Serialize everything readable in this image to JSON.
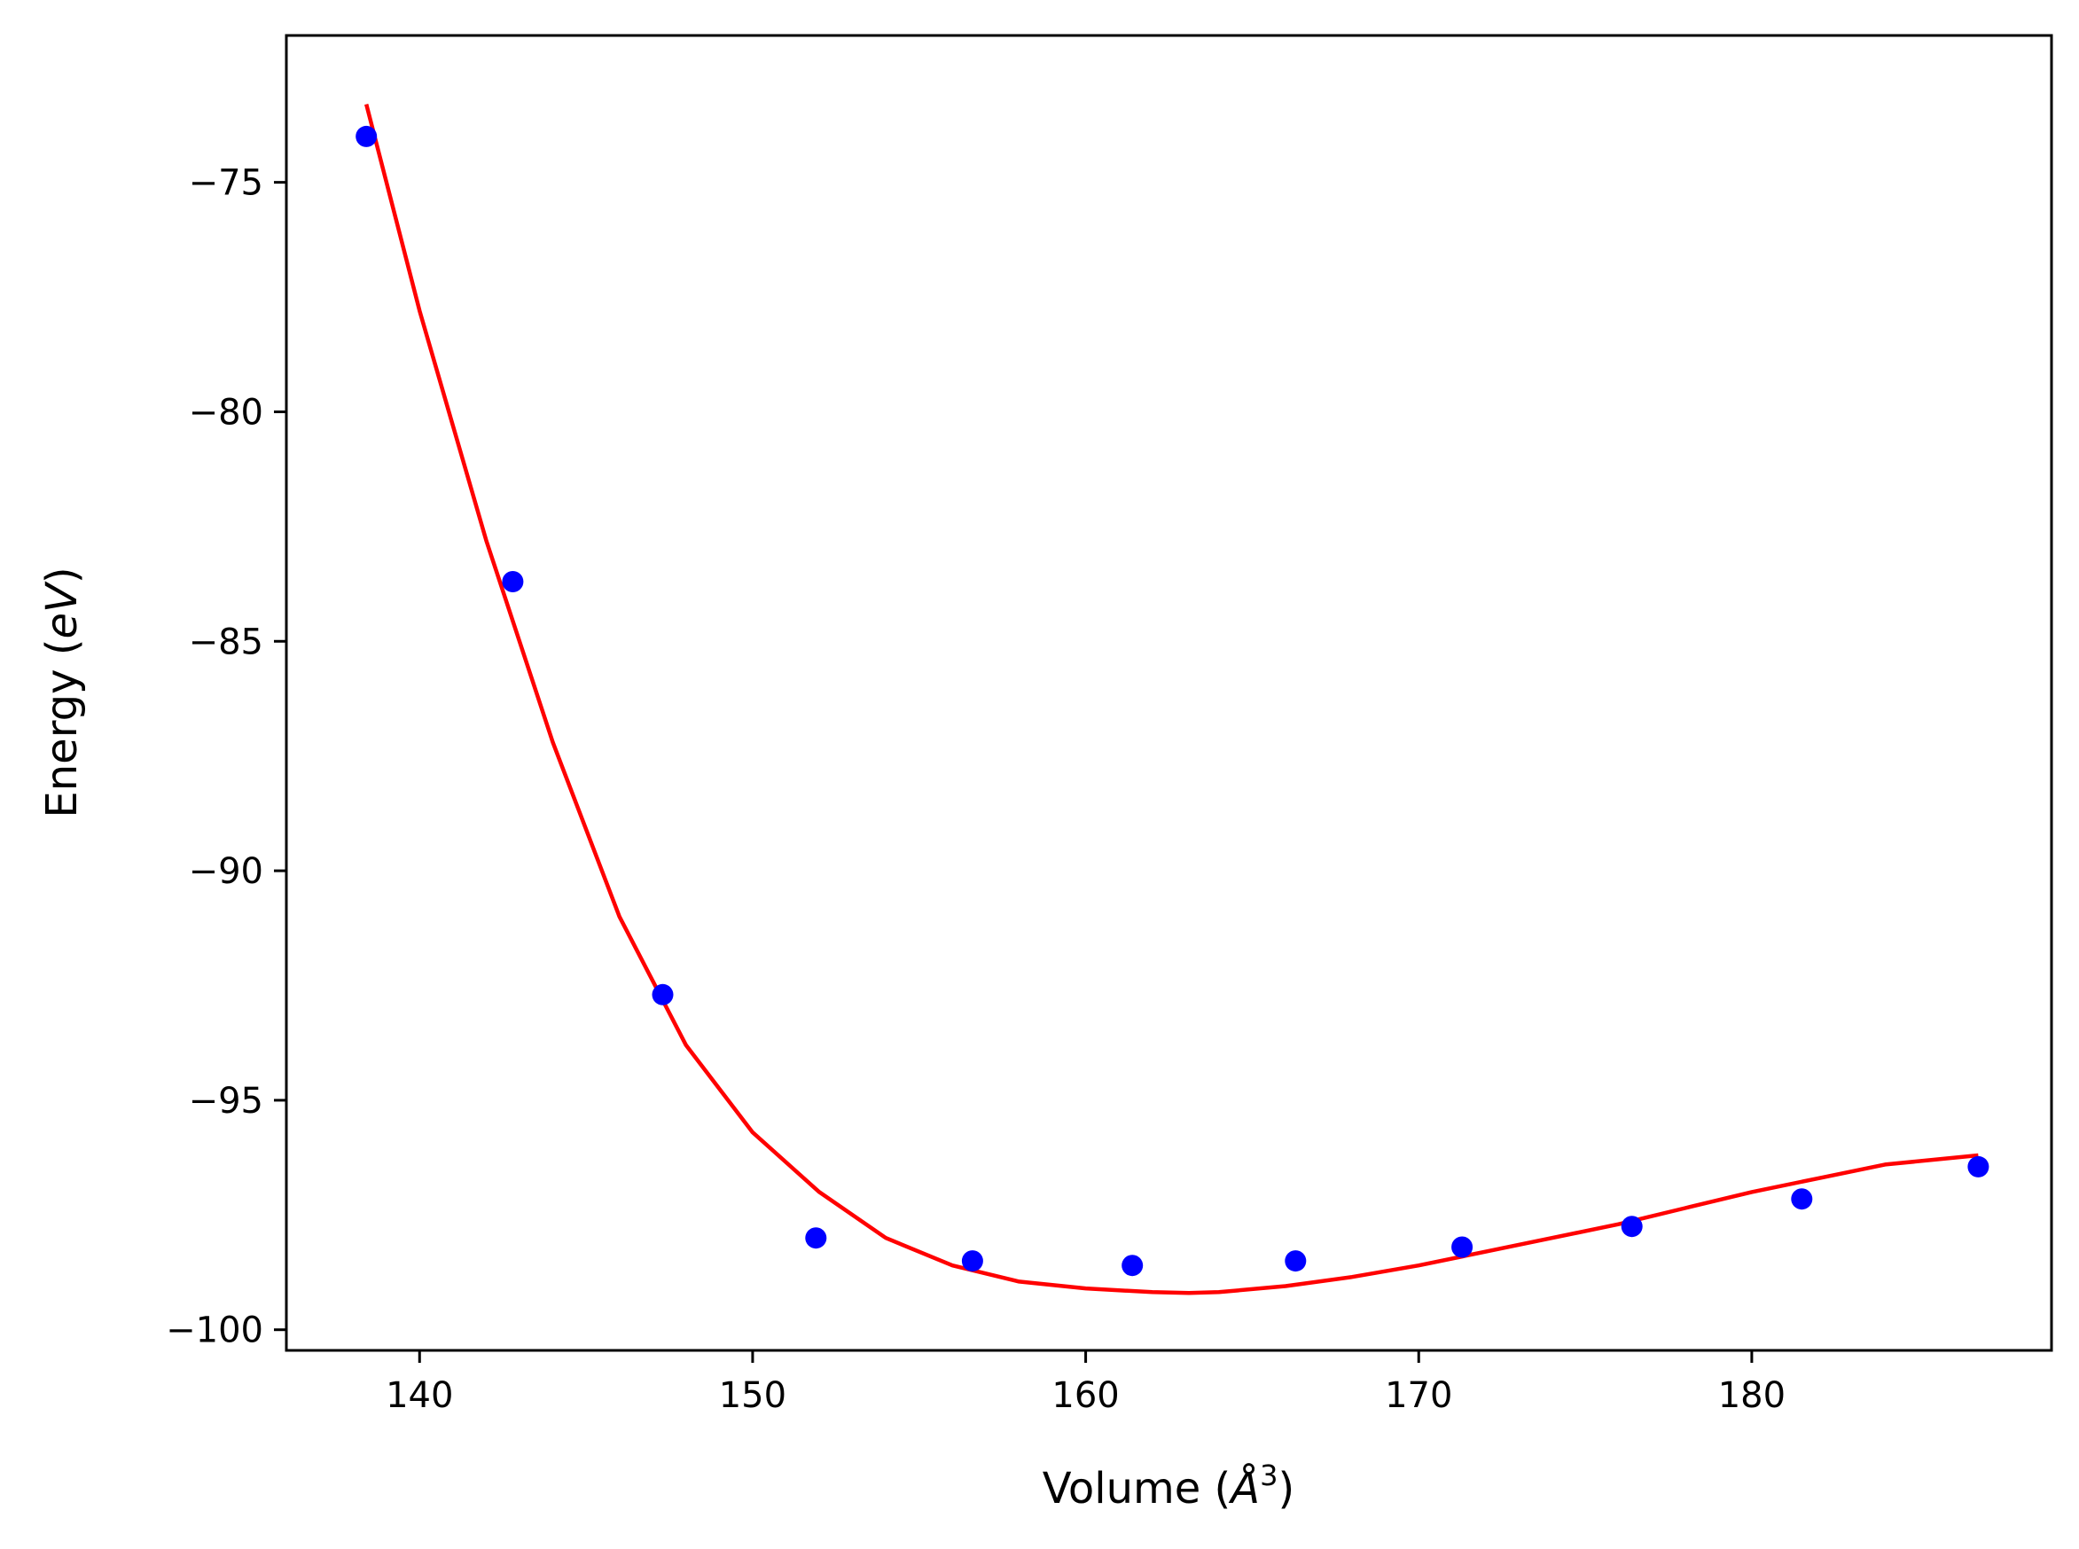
{
  "chart_data": {
    "type": "scatter",
    "title": "",
    "xlabel": "Volume (Å³)",
    "xlabel_parts": {
      "prefix": "Volume (",
      "symbol": "Å",
      "superscript": "3",
      "suffix": ")"
    },
    "ylabel": "Energy (eV)",
    "ylabel_parts": {
      "prefix": "Energy (",
      "symbol": "eV",
      "suffix": ")"
    },
    "xlim": [
      136,
      189
    ],
    "ylim": [
      -100.45,
      -71.8
    ],
    "xticks": [
      140,
      150,
      160,
      170,
      180
    ],
    "yticks": [
      -75,
      -80,
      -85,
      -90,
      -95,
      -100
    ],
    "xtick_labels": [
      "140",
      "150",
      "160",
      "170",
      "180"
    ],
    "ytick_labels": [
      "−75",
      "−80",
      "−85",
      "−90",
      "−95",
      "−100"
    ],
    "grid": false,
    "legend": "none",
    "series": [
      {
        "type": "scatter",
        "color": "#0000ff",
        "x": [
          138.4,
          142.8,
          147.3,
          151.9,
          156.6,
          161.4,
          166.3,
          171.3,
          176.4,
          181.5,
          186.8
        ],
        "y": [
          -74.0,
          -83.7,
          -92.7,
          -98.0,
          -98.5,
          -98.6,
          -98.5,
          -98.2,
          -97.75,
          -97.15,
          -96.45
        ]
      },
      {
        "type": "line",
        "color": "#ff0000",
        "x": [
          138.4,
          140.0,
          142.0,
          144.0,
          146.0,
          148.0,
          150.0,
          152.0,
          154.0,
          156.0,
          158.0,
          160.0,
          162.0,
          163.1,
          164.0,
          166.0,
          168.0,
          170.0,
          172.0,
          174.0,
          176.0,
          178.0,
          180.0,
          182.0,
          184.0,
          186.8
        ],
        "y": [
          -73.3,
          -77.8,
          -82.8,
          -87.2,
          -91.0,
          -93.8,
          -95.7,
          -97.0,
          -98.0,
          -98.6,
          -98.95,
          -99.1,
          -99.18,
          -99.2,
          -99.18,
          -99.05,
          -98.85,
          -98.6,
          -98.3,
          -98.0,
          -97.7,
          -97.35,
          -97.0,
          -96.7,
          -96.4,
          -96.2
        ]
      }
    ]
  }
}
